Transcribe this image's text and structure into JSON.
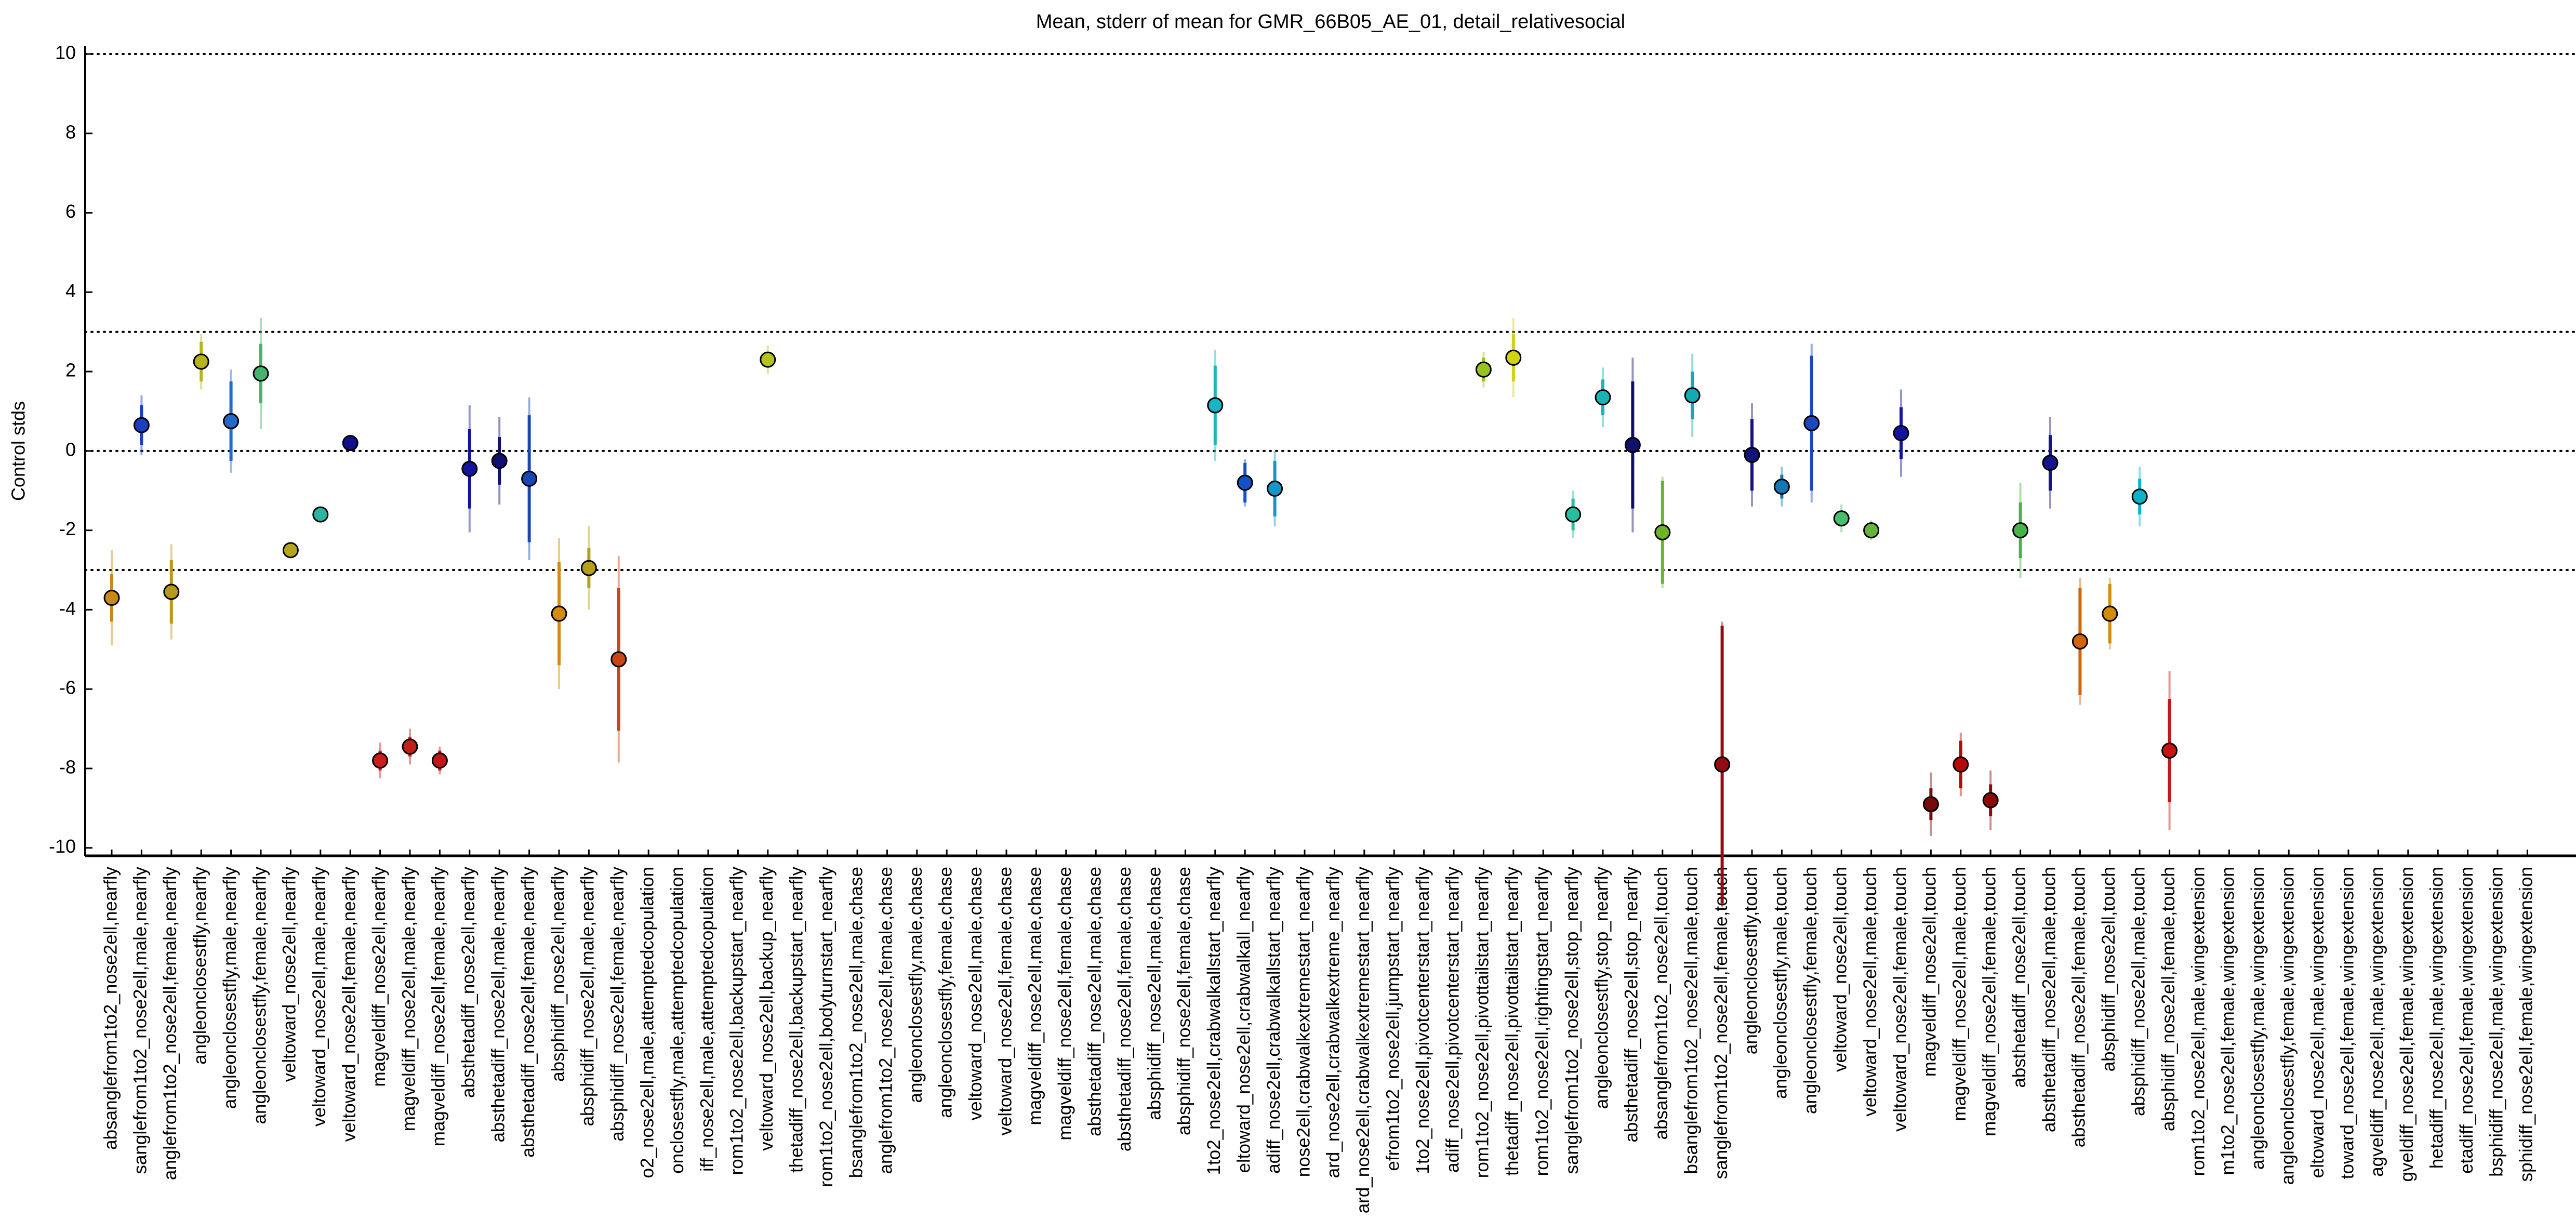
{
  "chart_data": {
    "type": "errorbar",
    "title": "Mean, stderr of mean for GMR_66B05_AE_01, detail_relativesocial",
    "y_label": "Control stds",
    "categories": [
      "absanglefrom1to2_nose2ell,nearfly",
      "sanglefrom1to2_nose2ell,male,nearfly",
      "anglefrom1to2_nose2ell,female,nearfly",
      "angleonclosestfly,nearfly",
      "angleonclosestfly,male,nearfly",
      "angleonclosestfly,female,nearfly",
      "veltoward_nose2ell,nearfly",
      "veltoward_nose2ell,male,nearfly",
      "veltoward_nose2ell,female,nearfly",
      "magveldiff_nose2ell,nearfly",
      "magveldiff_nose2ell,male,nearfly",
      "magveldiff_nose2ell,female,nearfly",
      "absthetadiff_nose2ell,nearfly",
      "absthetadiff_nose2ell,male,nearfly",
      "absthetadiff_nose2ell,female,nearfly",
      "absphidiff_nose2ell,nearfly",
      "absphidiff_nose2ell,male,nearfly",
      "absphidiff_nose2ell,female,nearfly",
      "o2_nose2ell,male,attemptedcopulation",
      "onclosestfly,male,attemptedcopulation",
      "iff_nose2ell,male,attemptedcopulation",
      "rom1to2_nose2ell,backupstart_nearfly",
      "veltoward_nose2ell,backup_nearfly",
      "thetadiff_nose2ell,backupstart_nearfly",
      "rom1to2_nose2ell,bodyturnstart_nearfly",
      "bsanglefrom1to2_nose2ell,male,chase",
      "anglefrom1to2_nose2ell,female,chase",
      "angleonclosestfly,male,chase",
      "angleonclosestfly,female,chase",
      "veltoward_nose2ell,male,chase",
      "veltoward_nose2ell,female,chase",
      "magveldiff_nose2ell,male,chase",
      "magveldiff_nose2ell,female,chase",
      "absthetadiff_nose2ell,male,chase",
      "absthetadiff_nose2ell,female,chase",
      "absphidiff_nose2ell,male,chase",
      "absphidiff_nose2ell,female,chase",
      "1to2_nose2ell,crabwalkallstart_nearfly",
      "eltoward_nose2ell,crabwalkall_nearfly",
      "adiff_nose2ell,crabwalkallstart_nearfly",
      "nose2ell,crabwalkextremestart_nearfly",
      "ard_nose2ell,crabwalkextreme_nearfly",
      "ard_nose2ell,crabwalkextremestart_nearfly",
      "efrom1to2_nose2ell,jumpstart_nearfly",
      "1to2_nose2ell,pivotcenterstart_nearfly",
      "adiff_nose2ell,pivotcenterstart_nearfly",
      "rom1to2_nose2ell,pivottailstart_nearfly",
      "thetadiff_nose2ell,pivottailstart_nearfly",
      "rom1to2_nose2ell,rightingstart_nearfly",
      "sanglefrom1to2_nose2ell,stop_nearfly",
      "angleonclosestfly,stop_nearfly",
      "absthetadiff_nose2ell,stop_nearfly",
      "absanglefrom1to2_nose2ell,touch",
      "bsanglefrom1to2_nose2ell,male,touch",
      "sanglefrom1to2_nose2ell,female,touch",
      "angleonclosestfly,touch",
      "angleonclosestfly,male,touch",
      "angleonclosestfly,female,touch",
      "veltoward_nose2ell,touch",
      "veltoward_nose2ell,male,touch",
      "veltoward_nose2ell,female,touch",
      "magveldiff_nose2ell,touch",
      "magveldiff_nose2ell,male,touch",
      "magveldiff_nose2ell,female,touch",
      "absthetadiff_nose2ell,touch",
      "absthetadiff_nose2ell,male,touch",
      "absthetadiff_nose2ell,female,touch",
      "absphidiff_nose2ell,touch",
      "absphidiff_nose2ell,male,touch",
      "absphidiff_nose2ell,female,touch",
      "rom1to2_nose2ell,male,wingextension",
      "m1to2_nose2ell,female,wingextension",
      "angleonclosestfly,male,wingextension",
      "angleonclosestfly,female,wingextension",
      "eltoward_nose2ell,male,wingextension",
      "toward_nose2ell,female,wingextension",
      "agveldiff_nose2ell,male,wingextension",
      "gveldiff_nose2ell,female,wingextension",
      "hetadiff_nose2ell,male,wingextension",
      "etadiff_nose2ell,female,wingextension",
      "bsphidiff_nose2ell,male,wingextension",
      "sphidiff_nose2ell,female,wingextension"
    ],
    "values": [
      -3.7,
      0.65,
      -3.55,
      2.25,
      0.75,
      1.95,
      -2.5,
      -1.6,
      0.2,
      -7.8,
      -7.45,
      -7.8,
      -0.45,
      -0.25,
      -0.7,
      -4.1,
      -2.95,
      -5.25,
      null,
      null,
      null,
      null,
      2.3,
      null,
      null,
      null,
      null,
      null,
      null,
      null,
      null,
      null,
      null,
      null,
      null,
      null,
      null,
      1.15,
      -0.8,
      -0.95,
      null,
      null,
      null,
      null,
      null,
      null,
      2.05,
      2.35,
      null,
      -1.6,
      1.35,
      0.15,
      -2.05,
      1.4,
      -7.9,
      -0.1,
      -0.9,
      0.7,
      -1.7,
      -2.0,
      0.45,
      -8.9,
      -7.9,
      -8.8,
      -2.0,
      -0.3,
      -4.8,
      -4.1,
      -1.15,
      -7.55,
      null,
      null,
      null,
      null,
      null,
      null,
      null,
      null,
      null,
      null,
      null,
      null
    ],
    "errors": [
      0.6,
      0.5,
      0.8,
      0.5,
      1.0,
      0.75,
      0.1,
      0.1,
      0.1,
      0.25,
      0.25,
      0.25,
      1.0,
      0.6,
      1.6,
      1.3,
      0.5,
      1.8,
      null,
      null,
      null,
      null,
      0.2,
      null,
      null,
      null,
      null,
      null,
      null,
      null,
      null,
      null,
      null,
      null,
      null,
      null,
      null,
      1.0,
      0.5,
      0.7,
      null,
      null,
      null,
      null,
      null,
      null,
      0.3,
      0.6,
      null,
      0.4,
      0.45,
      1.6,
      1.3,
      0.6,
      3.5,
      0.9,
      0.3,
      1.7,
      0.2,
      0.15,
      0.65,
      0.4,
      0.6,
      0.4,
      0.7,
      0.7,
      1.35,
      0.75,
      0.45,
      1.3,
      null,
      null,
      null,
      null,
      null,
      null,
      null,
      null,
      null,
      null,
      null,
      null
    ],
    "errors_outer": [
      1.2,
      0.75,
      1.2,
      0.7,
      1.3,
      1.4,
      0.2,
      0.15,
      0.15,
      0.45,
      0.45,
      0.35,
      1.6,
      1.1,
      2.05,
      1.9,
      1.05,
      2.6,
      null,
      null,
      null,
      null,
      0.35,
      null,
      null,
      null,
      null,
      null,
      null,
      null,
      null,
      null,
      null,
      null,
      null,
      null,
      null,
      1.4,
      0.6,
      0.95,
      null,
      null,
      null,
      null,
      null,
      null,
      0.45,
      1.0,
      null,
      0.6,
      0.75,
      2.2,
      1.4,
      1.05,
      3.6,
      1.3,
      0.5,
      2.0,
      0.35,
      0.25,
      1.1,
      0.8,
      0.8,
      0.75,
      1.2,
      1.15,
      1.6,
      0.9,
      0.75,
      2.0,
      null,
      null,
      null,
      null,
      null,
      null,
      null,
      null,
      null,
      null,
      null,
      null
    ],
    "colors": [
      "#c8891a",
      "#1a3fbf",
      "#b59a1e",
      "#b5b51a",
      "#2468c8",
      "#46b46e",
      "#b5a51a",
      "#2ab5a0",
      "#10108c",
      "#c81e1e",
      "#c0201a",
      "#c01818",
      "#141496",
      "#10106e",
      "#1a46b4",
      "#d28c14",
      "#b4a01a",
      "#c84614",
      "#a0a0a0",
      "#a0a0a0",
      "#a0a0a0",
      "#a0a0a0",
      "#b4c31e",
      "#a0a0a0",
      "#a0a0a0",
      "#a0a0a0",
      "#a0a0a0",
      "#a0a0a0",
      "#a0a0a0",
      "#a0a0a0",
      "#a0a0a0",
      "#a0a0a0",
      "#a0a0a0",
      "#a0a0a0",
      "#a0a0a0",
      "#a0a0a0",
      "#a0a0a0",
      "#1ab4c3",
      "#1450c8",
      "#1496c8",
      "#a0a0a0",
      "#a0a0a0",
      "#a0a0a0",
      "#a0a0a0",
      "#a0a0a0",
      "#a0a0a0",
      "#96c31e",
      "#d2d214",
      "#a0a0a0",
      "#28bea0",
      "#1ab4b4",
      "#10106e",
      "#6eb428",
      "#14aab4",
      "#960a14",
      "#141478",
      "#1478b4",
      "#1e46be",
      "#46be6e",
      "#64b43c",
      "#1414a0",
      "#780a0a",
      "#b40a0a",
      "#8c0a0a",
      "#46b446",
      "#14148c",
      "#d2640a",
      "#d28c0a",
      "#0ab4c8",
      "#c81414",
      "#a0a0a0",
      "#a0a0a0",
      "#a0a0a0",
      "#a0a0a0",
      "#a0a0a0",
      "#a0a0a0",
      "#a0a0a0",
      "#a0a0a0",
      "#a0a0a0",
      "#a0a0a0",
      "#a0a0a0",
      "#a0a0a0"
    ],
    "ylim": [
      -10.2,
      10.2
    ],
    "yticks": [
      -10,
      -8,
      -6,
      -4,
      -2,
      0,
      2,
      4,
      6,
      8,
      10
    ],
    "hlines": [
      10,
      3,
      0,
      -3
    ]
  }
}
